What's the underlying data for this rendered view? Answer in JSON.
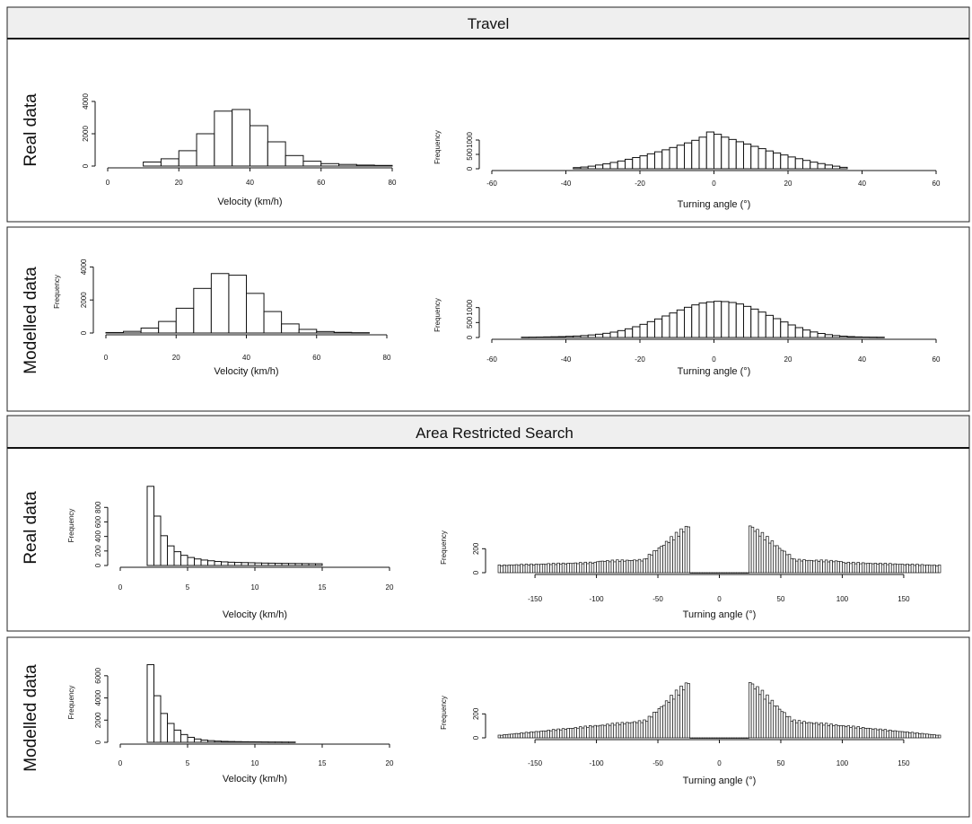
{
  "sections": [
    {
      "title": "Travel"
    },
    {
      "title": "Area Restricted Search"
    }
  ],
  "rows": [
    {
      "label": "Real data"
    },
    {
      "label": "Modelled data"
    },
    {
      "label": "Real data"
    },
    {
      "label": "Modelled data"
    }
  ],
  "chart_data": [
    {
      "type": "bar",
      "section": "Travel",
      "row": "Real data",
      "xlabel": "Velocity (km/h)",
      "ylabel": "",
      "xticks": [
        0,
        20,
        40,
        60,
        80
      ],
      "xlim": [
        0,
        80
      ],
      "yticks": [
        0,
        2000,
        4000
      ],
      "ylim": [
        0,
        5000
      ],
      "bin_edges": [
        10,
        15,
        20,
        25,
        30,
        35,
        40,
        45,
        50,
        55,
        60,
        65,
        70,
        75,
        80
      ],
      "values": [
        250,
        450,
        950,
        2000,
        3400,
        3500,
        2500,
        1500,
        650,
        300,
        150,
        100,
        60,
        40
      ]
    },
    {
      "type": "bar",
      "section": "Travel",
      "row": "Real data",
      "xlabel": "Turning angle (°)",
      "ylabel": "Frequency",
      "xticks": [
        -60,
        -40,
        -20,
        0,
        20,
        40,
        60
      ],
      "xlim": [
        -60,
        60
      ],
      "yticks": [
        0,
        500,
        1000
      ],
      "ylim": [
        0,
        1500
      ],
      "bin_edges": [
        -38,
        -36,
        -34,
        -32,
        -30,
        -28,
        -26,
        -24,
        -22,
        -20,
        -18,
        -16,
        -14,
        -12,
        -10,
        -8,
        -6,
        -4,
        -2,
        0,
        2,
        4,
        6,
        8,
        10,
        12,
        14,
        16,
        18,
        20,
        22,
        24,
        26,
        28,
        30,
        32,
        34,
        36
      ],
      "values": [
        40,
        60,
        90,
        130,
        170,
        220,
        270,
        330,
        390,
        450,
        520,
        590,
        660,
        740,
        820,
        900,
        990,
        1100,
        1280,
        1200,
        1100,
        1020,
        940,
        860,
        780,
        700,
        620,
        550,
        480,
        410,
        350,
        290,
        230,
        180,
        130,
        90,
        50
      ]
    },
    {
      "type": "bar",
      "section": "Travel",
      "row": "Modelled data",
      "xlabel": "Velocity (km/h)",
      "ylabel": "Frequency",
      "xticks": [
        0,
        20,
        40,
        60,
        80
      ],
      "xlim": [
        0,
        80
      ],
      "yticks": [
        0,
        2000,
        4000
      ],
      "ylim": [
        0,
        5000
      ],
      "bin_edges": [
        0,
        5,
        10,
        15,
        20,
        25,
        30,
        35,
        40,
        45,
        50,
        55,
        60,
        65,
        70,
        75
      ],
      "values": [
        30,
        100,
        300,
        700,
        1500,
        2700,
        3600,
        3500,
        2400,
        1300,
        550,
        220,
        90,
        40,
        20
      ]
    },
    {
      "type": "bar",
      "section": "Travel",
      "row": "Modelled data",
      "xlabel": "Turning angle (°)",
      "ylabel": "Frequency",
      "xticks": [
        -60,
        -40,
        -20,
        0,
        20,
        40,
        60
      ],
      "xlim": [
        -60,
        60
      ],
      "yticks": [
        0,
        500,
        1000
      ],
      "ylim": [
        0,
        1500
      ],
      "bin_edges": [
        -52,
        -50,
        -48,
        -46,
        -44,
        -42,
        -40,
        -38,
        -36,
        -34,
        -32,
        -30,
        -28,
        -26,
        -24,
        -22,
        -20,
        -18,
        -16,
        -14,
        -12,
        -10,
        -8,
        -6,
        -4,
        -2,
        0,
        2,
        4,
        6,
        8,
        10,
        12,
        14,
        16,
        18,
        20,
        22,
        24,
        26,
        28,
        30,
        32,
        34,
        36,
        38,
        40,
        42,
        44,
        46
      ],
      "values": [
        10,
        12,
        15,
        20,
        25,
        30,
        40,
        50,
        65,
        85,
        110,
        140,
        180,
        230,
        290,
        360,
        440,
        530,
        620,
        720,
        820,
        920,
        1010,
        1090,
        1150,
        1190,
        1210,
        1200,
        1170,
        1120,
        1040,
        950,
        850,
        740,
        630,
        520,
        420,
        330,
        250,
        185,
        135,
        95,
        65,
        45,
        30,
        20,
        15,
        12,
        10
      ]
    },
    {
      "type": "bar",
      "section": "Area Restricted Search",
      "row": "Real data",
      "xlabel": "Velocity (km/h)",
      "ylabel": "Frequency",
      "xticks": [
        0,
        5,
        10,
        15,
        20
      ],
      "xlim": [
        0,
        20
      ],
      "yticks": [
        0,
        200,
        400,
        600,
        800
      ],
      "ylim": [
        0,
        1100
      ],
      "bin_edges": [
        2,
        2.5,
        3,
        3.5,
        4,
        4.5,
        5,
        5.5,
        6,
        6.5,
        7,
        7.5,
        8,
        8.5,
        9,
        9.5,
        10,
        10.5,
        11,
        11.5,
        12,
        12.5,
        13,
        13.5,
        14,
        14.5,
        15
      ],
      "values": [
        1090,
        680,
        410,
        270,
        190,
        140,
        110,
        90,
        75,
        65,
        55,
        50,
        45,
        42,
        40,
        38,
        35,
        33,
        32,
        30,
        29,
        28,
        27,
        26,
        25,
        24
      ]
    },
    {
      "type": "bar",
      "section": "Area Restricted Search",
      "row": "Real data",
      "xlabel": "Turning angle (°)",
      "ylabel": "Frequency",
      "xticks": [
        -150,
        -100,
        -50,
        0,
        50,
        100,
        150
      ],
      "xlim": [
        -180,
        180
      ],
      "yticks": [
        0,
        200
      ],
      "ylim": [
        0,
        420
      ],
      "bin_width": 2,
      "x_start": -180,
      "gap_range": [
        -24,
        24
      ]
    },
    {
      "type": "bar",
      "section": "Area Restricted Search",
      "row": "Modelled data",
      "xlabel": "Velocity (km/h)",
      "ylabel": "Frequency",
      "xticks": [
        0,
        5,
        10,
        15,
        20
      ],
      "xlim": [
        0,
        20
      ],
      "yticks": [
        0,
        2000,
        4000,
        6000
      ],
      "ylim": [
        0,
        7200
      ],
      "bin_edges": [
        2,
        2.5,
        3,
        3.5,
        4,
        4.5,
        5,
        5.5,
        6,
        6.5,
        7,
        7.5,
        8,
        8.5,
        9,
        9.5,
        10,
        10.5,
        11,
        11.5,
        12,
        12.5,
        13
      ],
      "values": [
        7000,
        4200,
        2600,
        1700,
        1100,
        700,
        450,
        300,
        200,
        150,
        110,
        85,
        70,
        60,
        50,
        45,
        40,
        35,
        30,
        28,
        25,
        22
      ]
    },
    {
      "type": "bar",
      "section": "Area Restricted Search",
      "row": "Modelled data",
      "xlabel": "Turning angle (°)",
      "ylabel": "Frequency",
      "xticks": [
        -150,
        -100,
        -50,
        0,
        50,
        100,
        150
      ],
      "xlim": [
        -180,
        180
      ],
      "yticks": [
        0,
        200
      ],
      "ylim": [
        0,
        420
      ],
      "bin_width": 2,
      "x_start": -180,
      "gap_range": [
        -24,
        24
      ]
    }
  ]
}
